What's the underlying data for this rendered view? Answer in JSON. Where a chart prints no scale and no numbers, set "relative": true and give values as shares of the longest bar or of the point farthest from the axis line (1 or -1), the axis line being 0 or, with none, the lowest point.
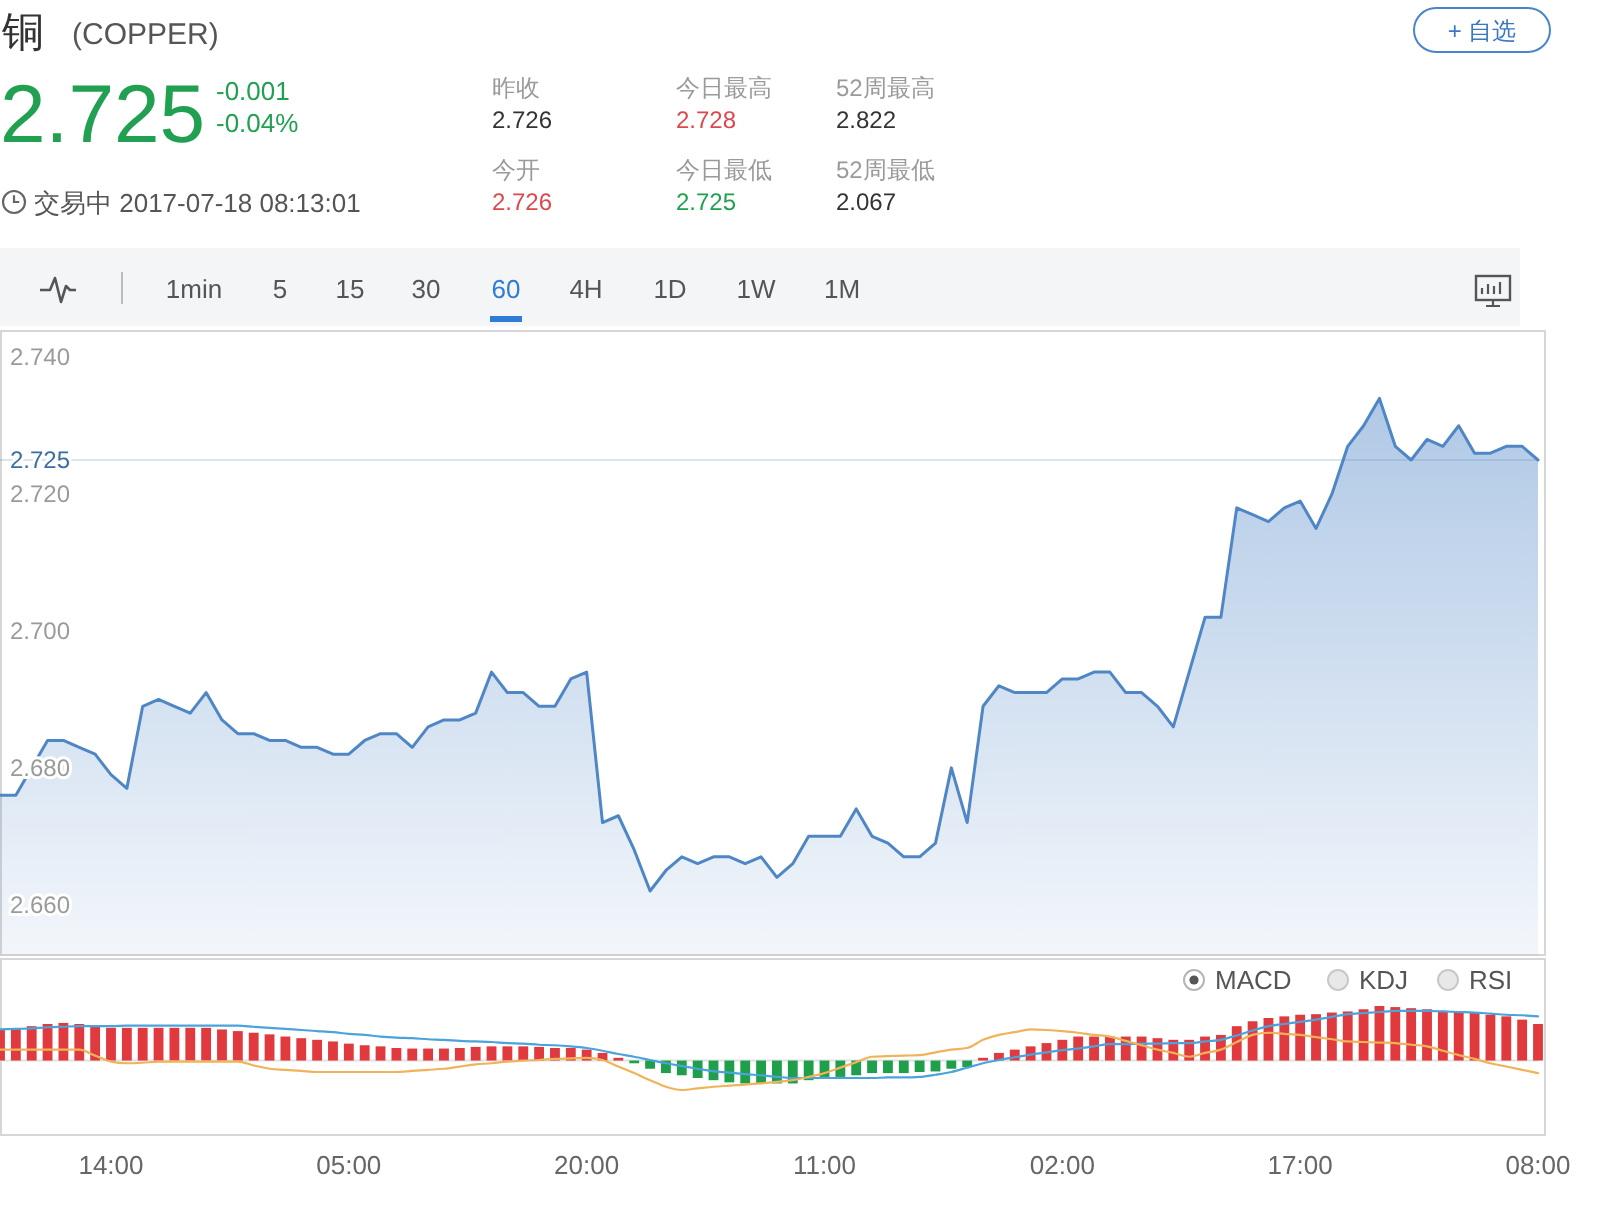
{
  "chart_data": [
    {
      "type": "other",
      "title": "铜",
      "subtitle": "(COPPER)",
      "annotations": [
        "2.725",
        "-0.001",
        "-0.04%",
        "交易中 2017-07-18 08:13:01",
        "昨收",
        "2.726",
        "今日最高",
        "2.728",
        "52周最高",
        "2.822",
        "今开",
        "2.726",
        "今日最低",
        "2.725",
        "52周最低",
        "2.067",
        "+ 自选",
        "1min",
        "5",
        "15",
        "30",
        "60",
        "4H",
        "1D",
        "1W",
        "1M"
      ]
    },
    {
      "type": "area",
      "color": "#4f86c6",
      "categories": [
        null,
        null,
        null,
        null,
        null,
        null,
        null,
        null,
        null,
        null,
        null,
        null,
        null,
        null,
        null,
        null,
        null,
        null,
        null,
        null,
        null,
        null,
        null,
        null,
        null,
        null,
        null,
        null,
        null,
        null,
        null,
        null,
        null,
        null,
        null,
        null,
        null,
        null,
        null,
        null,
        null,
        null,
        null,
        null,
        null,
        null,
        null,
        null,
        null,
        null,
        null,
        null,
        null,
        null,
        null,
        null,
        null,
        null,
        null,
        null,
        null,
        null,
        null,
        null,
        null,
        null,
        null,
        null,
        null,
        null,
        null,
        null,
        null,
        null,
        null,
        null,
        null,
        null,
        null,
        null,
        null,
        null,
        null,
        null,
        null,
        null,
        null,
        null,
        null,
        null,
        null,
        null,
        null,
        null,
        null,
        null,
        null,
        null
      ],
      "values": [
        2.676,
        2.676,
        2.68,
        2.684,
        2.684,
        2.683,
        2.682,
        2.679,
        2.677,
        2.689,
        2.69,
        2.689,
        2.688,
        2.691,
        2.687,
        2.685,
        2.685,
        2.684,
        2.684,
        2.683,
        2.683,
        2.682,
        2.682,
        2.684,
        2.685,
        2.685,
        2.683,
        2.686,
        2.687,
        2.687,
        2.688,
        2.694,
        2.691,
        2.691,
        2.689,
        2.689,
        2.693,
        2.694,
        2.672,
        2.673,
        2.668,
        2.662,
        2.665,
        2.667,
        2.666,
        2.667,
        2.667,
        2.666,
        2.667,
        2.664,
        2.666,
        2.67,
        2.67,
        2.67,
        2.674,
        2.67,
        2.669,
        2.667,
        2.667,
        2.669,
        2.68,
        2.672,
        2.689,
        2.692,
        2.691,
        2.691,
        2.691,
        2.693,
        2.693,
        2.694,
        2.694,
        2.691,
        2.691,
        2.689,
        2.686,
        2.694,
        2.702,
        2.702,
        2.718,
        2.717,
        2.716,
        2.718,
        2.719,
        2.715,
        2.72,
        2.727,
        2.73,
        2.734,
        2.727,
        2.725,
        2.728,
        2.727,
        2.73,
        2.726,
        2.726,
        2.727,
        2.727,
        2.725
      ],
      "ylim": [
        2.6525,
        2.744
      ],
      "yticks": [
        {
          "value": 2.66,
          "label": "2.660"
        },
        {
          "value": 2.68,
          "label": "2.680"
        },
        {
          "value": 2.7,
          "label": "2.700"
        },
        {
          "value": 2.72,
          "label": "2.720"
        },
        {
          "value": 2.74,
          "label": "2.740"
        }
      ],
      "ref_lines": [
        {
          "axis": "y",
          "value": 2.725,
          "label": "2.725",
          "color": "#3a6ea5"
        }
      ],
      "tick_labels": "y"
    },
    {
      "type": "bar",
      "relative": true,
      "categories": [
        null,
        null,
        null,
        null,
        null,
        null,
        null,
        "14:00",
        null,
        null,
        null,
        null,
        null,
        null,
        null,
        null,
        null,
        null,
        null,
        null,
        null,
        null,
        "05:00",
        null,
        null,
        null,
        null,
        null,
        null,
        null,
        null,
        null,
        null,
        null,
        null,
        null,
        null,
        "20:00",
        null,
        null,
        null,
        null,
        null,
        null,
        null,
        null,
        null,
        null,
        null,
        null,
        null,
        null,
        "11:00",
        null,
        null,
        null,
        null,
        null,
        null,
        null,
        null,
        null,
        null,
        null,
        null,
        null,
        null,
        "02:00",
        null,
        null,
        null,
        null,
        null,
        null,
        null,
        null,
        null,
        null,
        null,
        null,
        null,
        null,
        "17:00",
        null,
        null,
        null,
        null,
        null,
        null,
        null,
        null,
        null,
        null,
        null,
        null,
        null,
        null,
        "08:00"
      ],
      "series": [
        {
          "color": "#e0393e",
          "values": [
            0.57,
            0.59,
            0.63,
            0.67,
            0.69,
            0.67,
            0.63,
            0.6,
            0.6,
            0.6,
            0.6,
            0.6,
            0.6,
            0.6,
            0.57,
            0.54,
            0.51,
            0.48,
            0.44,
            0.41,
            0.38,
            0.35,
            0.31,
            0.28,
            0.26,
            0.23,
            0.22,
            0.22,
            0.22,
            0.23,
            0.25,
            0.26,
            0.26,
            0.26,
            0.25,
            0.23,
            0.23,
            0.2,
            0.14,
            0.05,
            null,
            null,
            null,
            null,
            null,
            null,
            null,
            null,
            null,
            null,
            null,
            null,
            null,
            null,
            null,
            null,
            null,
            null,
            null,
            null,
            null,
            null,
            0.05,
            0.14,
            0.2,
            0.26,
            0.32,
            0.38,
            0.44,
            0.44,
            0.44,
            0.44,
            0.44,
            0.41,
            0.38,
            0.38,
            0.44,
            0.47,
            0.63,
            0.72,
            0.78,
            0.81,
            0.84,
            0.85,
            0.88,
            0.9,
            0.94,
            1.0,
            0.98,
            0.96,
            0.94,
            0.91,
            0.9,
            0.88,
            0.84,
            0.81,
            0.75,
            0.67
          ]
        },
        {
          "color": "#1f9e4b",
          "values": [
            null,
            null,
            null,
            null,
            null,
            null,
            null,
            null,
            null,
            null,
            null,
            null,
            null,
            null,
            null,
            null,
            null,
            null,
            null,
            null,
            null,
            null,
            null,
            null,
            null,
            null,
            null,
            null,
            null,
            null,
            null,
            null,
            null,
            null,
            null,
            null,
            null,
            null,
            null,
            null,
            -0.05,
            -0.15,
            -0.23,
            -0.27,
            -0.32,
            -0.36,
            -0.4,
            -0.42,
            -0.42,
            -0.42,
            -0.42,
            -0.36,
            -0.3,
            -0.3,
            -0.27,
            -0.23,
            -0.23,
            -0.23,
            -0.21,
            -0.2,
            -0.15,
            -0.12,
            null,
            null,
            null,
            null,
            null,
            null,
            null,
            null,
            null,
            null,
            null,
            null,
            null,
            null,
            null,
            null,
            null,
            null,
            null,
            null,
            null,
            null,
            null,
            null,
            null,
            null,
            null,
            null,
            null,
            null,
            null,
            null,
            null,
            null,
            null,
            null
          ]
        },
        {
          "type": "line",
          "color": "#4aa3da",
          "values": [
            0.57,
            0.58,
            0.59,
            0.61,
            0.62,
            0.63,
            0.63,
            0.63,
            0.64,
            0.64,
            0.64,
            0.64,
            0.64,
            0.64,
            0.64,
            0.64,
            0.62,
            0.6,
            0.58,
            0.56,
            0.54,
            0.52,
            0.49,
            0.47,
            0.44,
            0.42,
            0.41,
            0.39,
            0.38,
            0.36,
            0.35,
            0.34,
            0.32,
            0.31,
            0.29,
            0.28,
            0.26,
            0.23,
            0.18,
            0.12,
            0.07,
            0.01,
            -0.05,
            -0.1,
            -0.15,
            -0.2,
            -0.22,
            -0.25,
            -0.27,
            -0.3,
            -0.32,
            -0.32,
            -0.32,
            -0.32,
            -0.32,
            -0.32,
            -0.31,
            -0.31,
            -0.3,
            -0.26,
            -0.21,
            -0.13,
            -0.05,
            0.01,
            0.06,
            0.11,
            0.15,
            0.19,
            0.22,
            0.26,
            0.3,
            0.3,
            0.31,
            0.31,
            0.32,
            0.32,
            0.35,
            0.38,
            0.46,
            0.55,
            0.63,
            0.67,
            0.71,
            0.75,
            0.8,
            0.85,
            0.87,
            0.89,
            0.91,
            0.91,
            0.91,
            0.9,
            0.89,
            0.88,
            0.86,
            0.84,
            0.83,
            0.81
          ]
        },
        {
          "type": "line",
          "color": "#f0b35a",
          "values": [
            0.2,
            0.2,
            0.2,
            0.2,
            0.2,
            0.2,
            0.09,
            -0.02,
            -0.05,
            -0.04,
            -0.02,
            -0.02,
            -0.02,
            -0.02,
            -0.02,
            -0.02,
            -0.09,
            -0.15,
            -0.17,
            -0.19,
            -0.21,
            -0.21,
            -0.21,
            -0.21,
            -0.21,
            -0.21,
            -0.19,
            -0.17,
            -0.15,
            -0.11,
            -0.07,
            -0.05,
            -0.02,
            0.0,
            0.01,
            0.03,
            0.04,
            0.05,
            0.01,
            -0.11,
            -0.23,
            -0.36,
            -0.48,
            -0.54,
            -0.51,
            -0.48,
            -0.46,
            -0.44,
            -0.42,
            -0.39,
            -0.36,
            -0.3,
            -0.23,
            -0.13,
            -0.03,
            0.07,
            0.08,
            0.09,
            0.1,
            0.15,
            0.2,
            0.23,
            0.38,
            0.47,
            0.52,
            0.57,
            0.56,
            0.54,
            0.51,
            0.47,
            0.44,
            0.36,
            0.28,
            0.2,
            0.14,
            0.07,
            0.14,
            0.2,
            0.34,
            0.47,
            0.51,
            0.49,
            0.47,
            0.43,
            0.39,
            0.35,
            0.34,
            0.33,
            0.32,
            0.29,
            0.26,
            0.18,
            0.1,
            0.03,
            -0.05,
            -0.11,
            -0.17,
            -0.23
          ]
        }
      ],
      "tick_labels": "x",
      "annotations": [
        "MACD",
        "KDJ",
        "RSI"
      ]
    }
  ]
}
